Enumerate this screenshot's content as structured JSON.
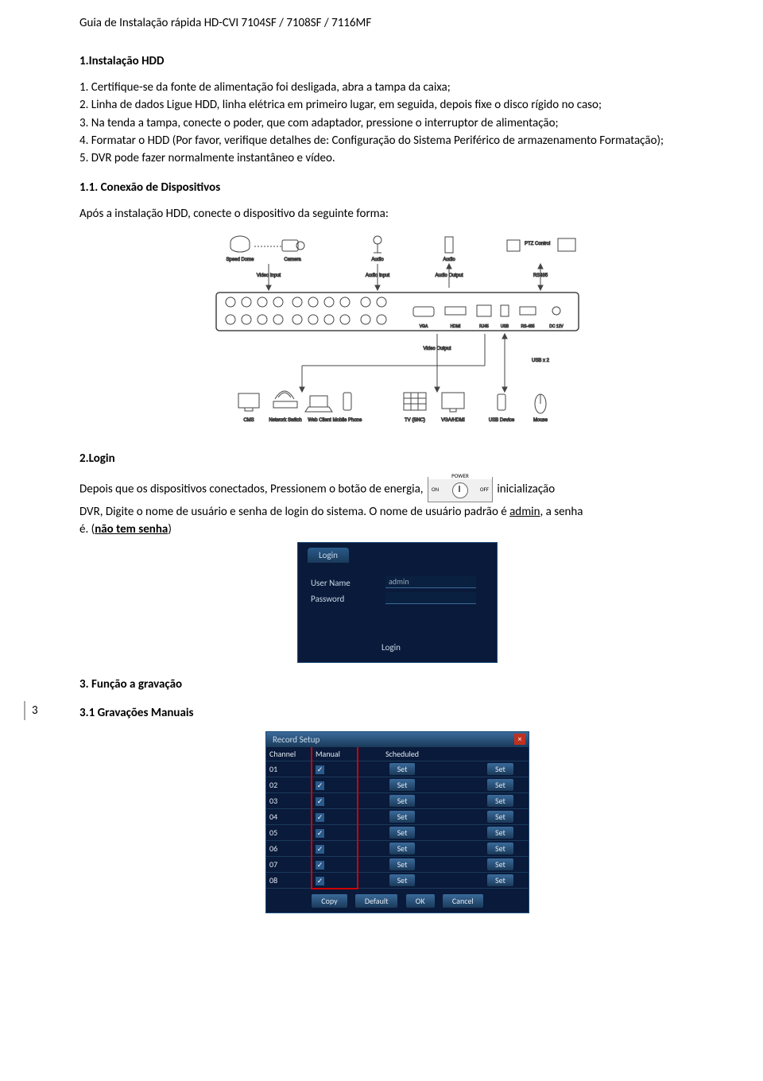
{
  "header": "Guia de Instalação rápida HD-CVI 7104SF / 7108SF / 7116MF",
  "page_number": "3",
  "section1": {
    "title": "1.Instalação HDD",
    "items": [
      "1. Certifique-se da fonte de alimentação foi desligada, abra a tampa da caixa;",
      "2. Linha de dados Ligue HDD, linha elétrica em primeiro lugar, em seguida, depois fixe o disco rígido no caso;",
      "3. Na tenda a tampa, conecte o poder, que com adaptador, pressione o interruptor de alimentação;",
      "4. Formatar o HDD (Por favor, verifique detalhes de: Configuração do Sistema Periférico de armazenamento Formatação);",
      "5. DVR pode fazer normalmente instantâneo e vídeo."
    ]
  },
  "section1_1": {
    "title": "1.1. Conexão de Dispositivos",
    "intro": "Após a instalação HDD, conecte o dispositivo da seguinte forma:"
  },
  "diagram": {
    "labels": {
      "speed_dome": "Speed Dome",
      "camera": "Camera",
      "audio": "Audio",
      "audio2": "Audio",
      "ptz_control": "PTZ Control",
      "video_input": "Video Input",
      "audio_input": "Audio Input",
      "audio_output": "Audio Output",
      "rs485": "RS485",
      "video_output": "Video Output",
      "usb_x2": "USB x 2",
      "cms": "CMS",
      "network_switch": "Network Switch",
      "web_client": "Web Client",
      "mobile_phone": "Mobile Phone",
      "tv_bnc": "TV (BNC)",
      "vga_hdmi": "VGA/HDMI",
      "usb_device": "USB Device",
      "mouse": "Mouse",
      "vga": "VGA",
      "hdmi": "HDMI",
      "rj45": "RJ45",
      "usb": "USB",
      "rs485_2": "RS-485",
      "dc12v": "DC 12V"
    }
  },
  "section2": {
    "title": "2.Login",
    "text_before": "Depois que os dispositivos conectados, Pressionem o botão de energia,",
    "text_after1": "inicialização",
    "text_line2a": "DVR, Digite o nome de usuário e senha de login do sistema. O nome de usuário padrão é ",
    "text_line2b": "admin",
    "text_line2c": ", a senha",
    "text_line3a": "é. (",
    "text_line3b": "não tem senha",
    "text_line3c": ")",
    "power": {
      "label": "POWER",
      "on": "ON",
      "off": "OFF"
    }
  },
  "login": {
    "title": "Login",
    "user_label": "User Name",
    "pass_label": "Password",
    "user_value": "admin",
    "button": "Login"
  },
  "section3": {
    "title": "3.  Função a gravação",
    "sub": "3.1 Gravações Manuais"
  },
  "record": {
    "title": "Record Setup",
    "headers": {
      "channel": "Channel",
      "manual": "Manual",
      "scheduled": "Scheduled"
    },
    "rows": [
      "01",
      "02",
      "03",
      "04",
      "05",
      "06",
      "07",
      "08"
    ],
    "set": "Set",
    "buttons": {
      "copy": "Copy",
      "default": "Default",
      "ok": "OK",
      "cancel": "Cancel"
    }
  }
}
